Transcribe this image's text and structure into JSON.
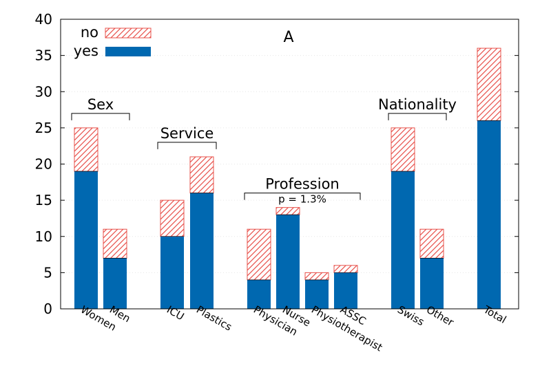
{
  "chart_data": {
    "type": "bar",
    "stacked": true,
    "title": "A",
    "xlabel": "",
    "ylabel": "",
    "ylim": [
      0,
      40
    ],
    "yticks": [
      0,
      5,
      10,
      15,
      20,
      25,
      30,
      35,
      40
    ],
    "grid": true,
    "legend_position": "top-left",
    "categories": [
      "Women",
      "Men",
      "ICU",
      "Plastics",
      "Physician",
      "Nurse",
      "Physiotherapist",
      "ASSC",
      "Swiss",
      "Other",
      "Total"
    ],
    "series": [
      {
        "name": "yes",
        "color": "#0068b0",
        "pattern": "solid",
        "values": [
          19,
          7,
          10,
          16,
          4,
          13,
          4,
          5,
          19,
          7,
          26
        ]
      },
      {
        "name": "no",
        "color": "#e8504a",
        "pattern": "hatched",
        "values": [
          6,
          4,
          5,
          5,
          7,
          1,
          1,
          1,
          6,
          4,
          10
        ]
      }
    ],
    "legend": [
      {
        "key": "no",
        "label": "no"
      },
      {
        "key": "yes",
        "label": "yes"
      }
    ],
    "groups": [
      {
        "label": "Sex",
        "categories": [
          "Women",
          "Men"
        ],
        "level": 27
      },
      {
        "label": "Service",
        "categories": [
          "ICU",
          "Plastics"
        ],
        "level": 23
      },
      {
        "label": "Profession",
        "categories": [
          "Physician",
          "Nurse",
          "Physiotherapist",
          "ASSC"
        ],
        "level": 16,
        "note": "p = 1.3%"
      },
      {
        "label": "Nationality",
        "categories": [
          "Swiss",
          "Other"
        ],
        "level": 27
      }
    ]
  }
}
